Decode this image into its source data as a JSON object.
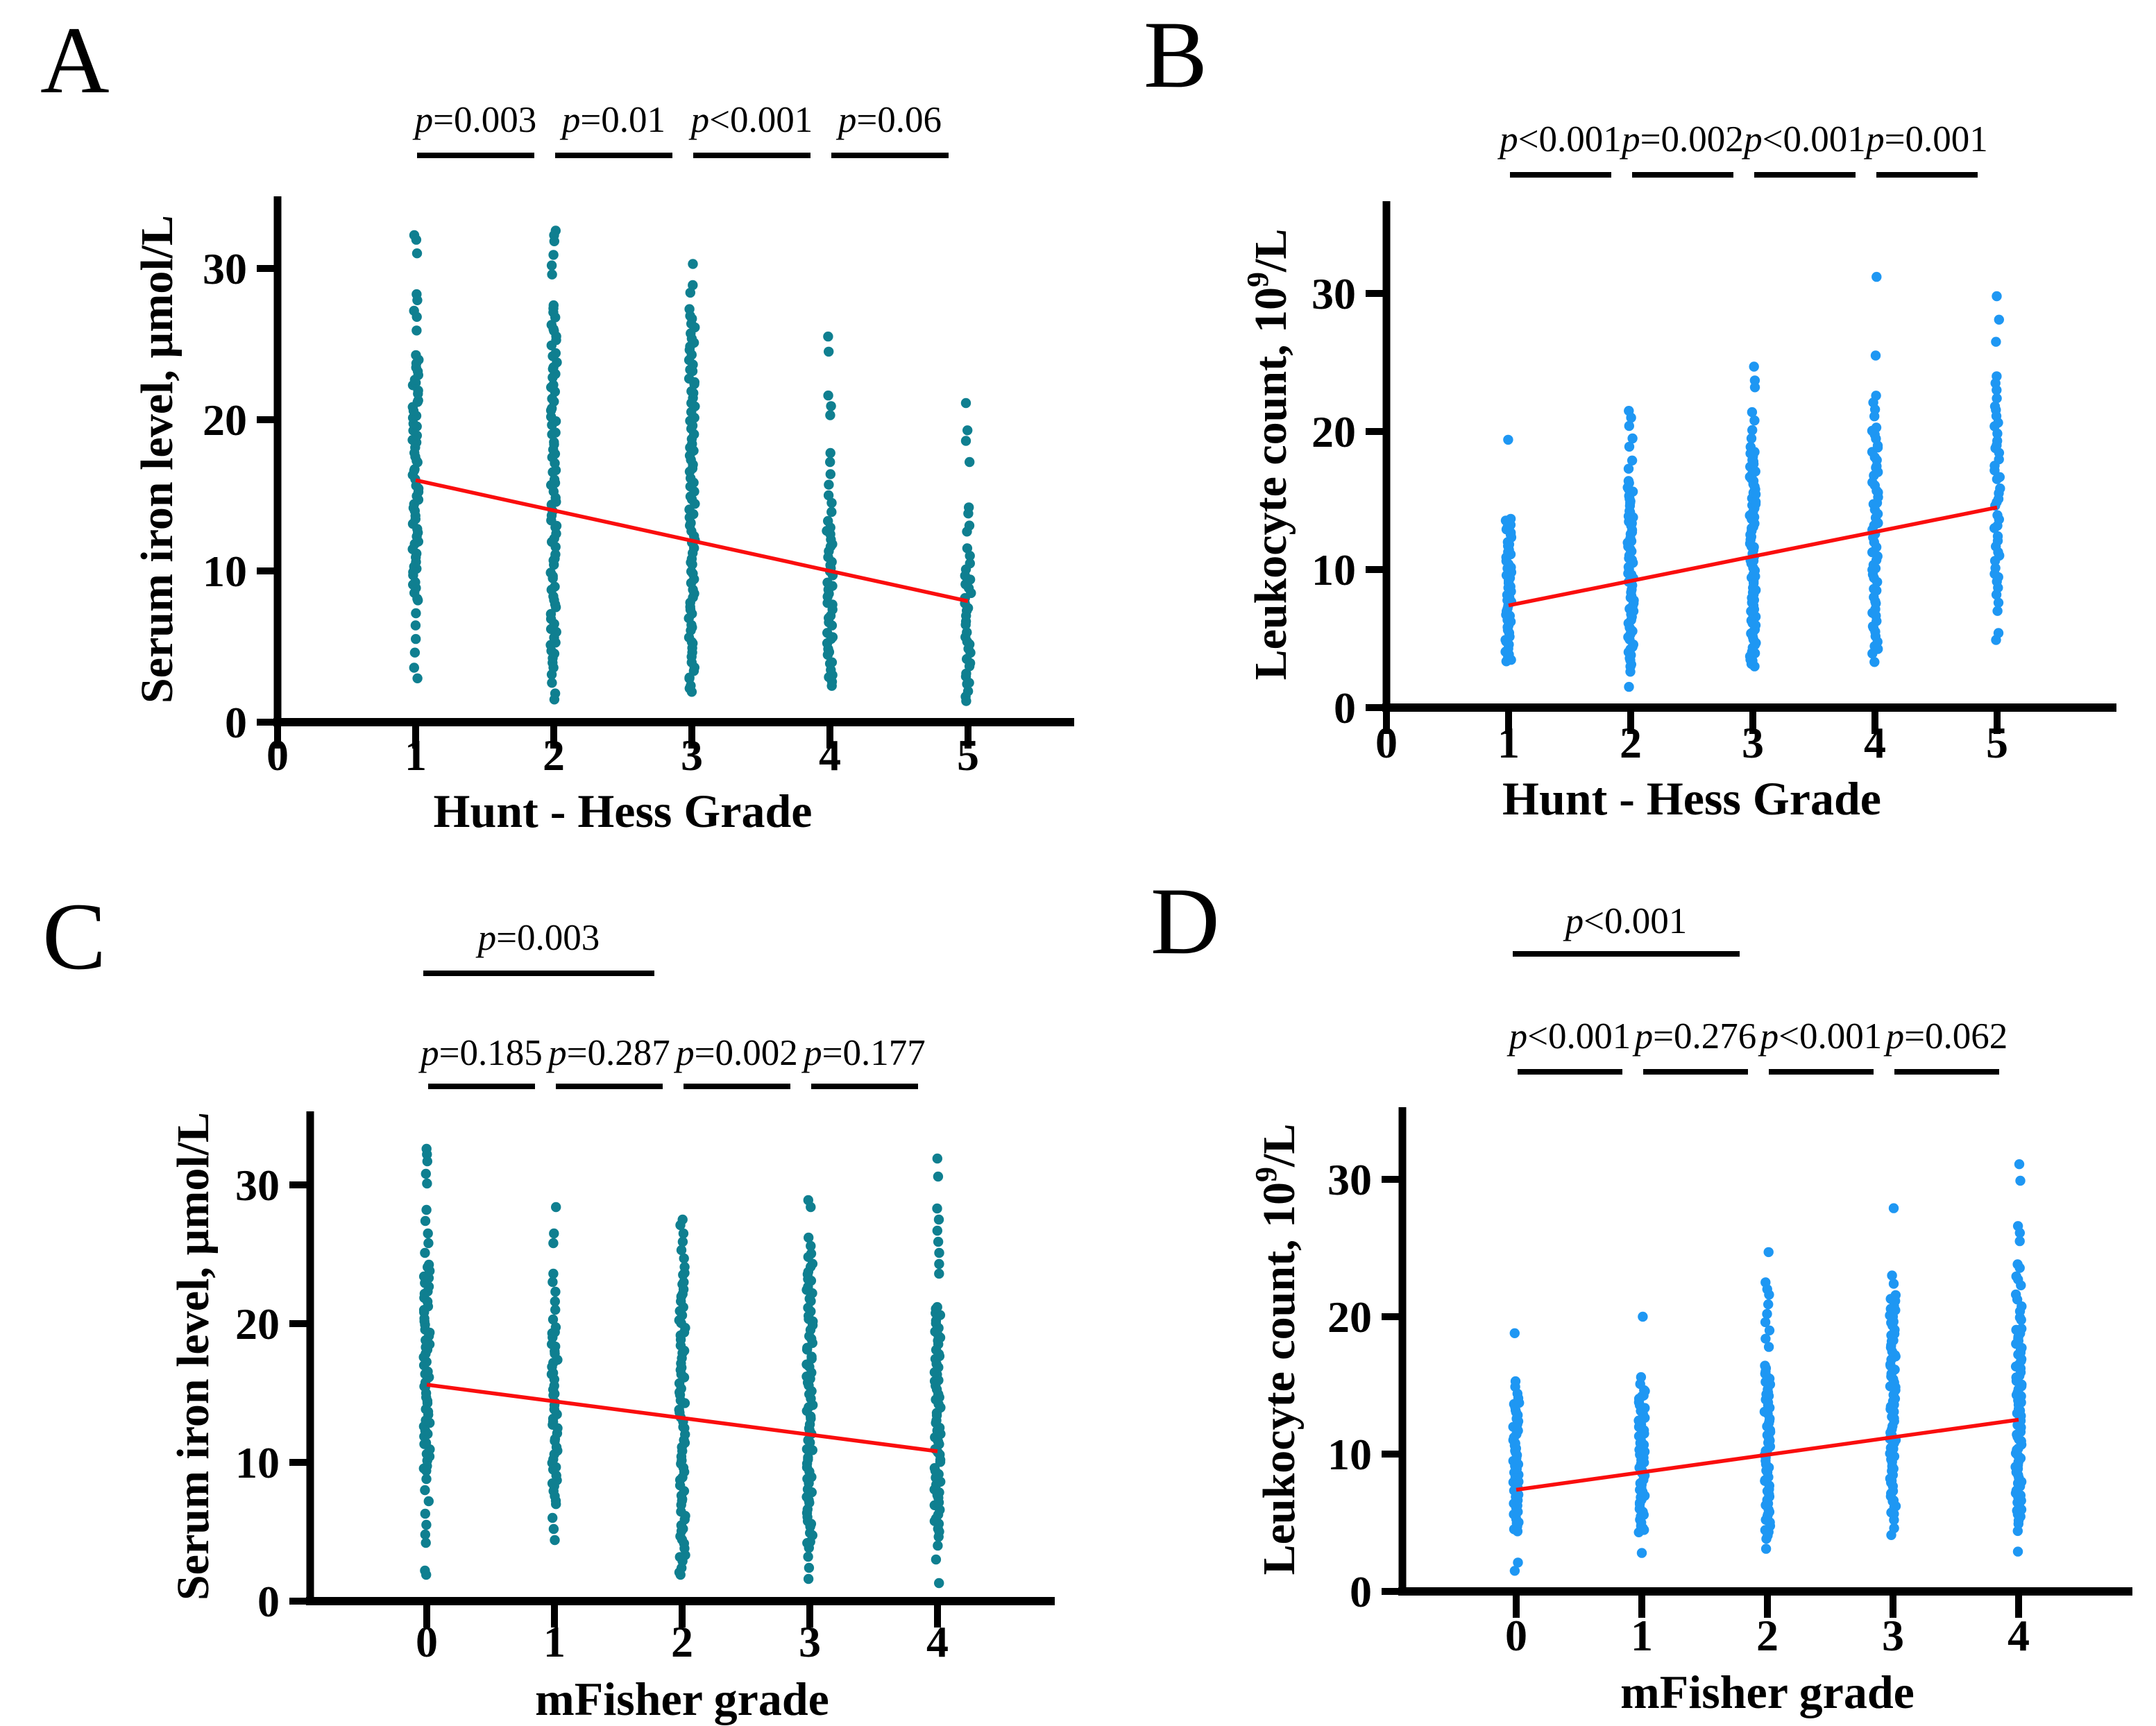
{
  "figure": {
    "background": "#ffffff",
    "panel_order": [
      "A",
      "B",
      "C",
      "D"
    ]
  },
  "colors": {
    "teal_points": "#0f7f90",
    "blue_points": "#1e97f3",
    "trend_red": "#fa0d0d",
    "axis_black": "#000000"
  },
  "chart_data": [
    {
      "id": "A",
      "panel_label": "A",
      "type": "scatter",
      "xlabel": "Hunt - Hess Grade",
      "ylabel": "Serum iron level, µmol/L",
      "ylabel_parts": [
        {
          "text": "Serum iron level, µmol/L"
        }
      ],
      "xticks": [
        "0",
        "1",
        "2",
        "3",
        "4",
        "5"
      ],
      "yticks": [
        "0",
        "10",
        "20",
        "30"
      ],
      "ylim": [
        0,
        35
      ],
      "grid": false,
      "point_color": "#0f7f90",
      "trend": {
        "color": "#fa0d0d",
        "from_x": "1",
        "from_y": 16.0,
        "to_x": "5",
        "to_y": 8.0
      },
      "comparisons": [
        {
          "label": "p=0.003",
          "from": "1",
          "to": "2",
          "row": "adjacent"
        },
        {
          "label": "p=0.01",
          "from": "2",
          "to": "3",
          "row": "adjacent"
        },
        {
          "label": "p<0.001",
          "from": "3",
          "to": "4",
          "row": "adjacent"
        },
        {
          "label": "p=0.06",
          "from": "4",
          "to": "5",
          "row": "adjacent"
        }
      ],
      "groups": [
        {
          "x": "1",
          "singles": [
            32.2,
            31.9,
            31.0,
            28.3,
            27.9,
            27.2,
            26.8,
            25.9,
            7.2,
            6.4,
            5.5,
            4.6,
            3.6,
            2.9
          ],
          "bands": [
            {
              "lo": 8.0,
              "hi": 24.3,
              "n": 62
            }
          ]
        },
        {
          "x": "2",
          "singles": [
            32.5,
            32.2,
            31.8,
            30.9,
            30.2,
            29.6,
            2.6,
            1.9,
            1.5
          ],
          "bands": [
            {
              "lo": 3.2,
              "hi": 27.6,
              "n": 80
            }
          ]
        },
        {
          "x": "3",
          "singles": [
            30.3,
            28.9,
            28.4
          ],
          "bands": [
            {
              "lo": 1.9,
              "hi": 27.2,
              "n": 88
            }
          ]
        },
        {
          "x": "4",
          "singles": [
            25.5,
            24.5,
            21.6,
            20.9,
            20.3,
            17.8,
            17.2,
            16.4,
            15.7,
            15.0,
            14.5,
            13.9
          ],
          "bands": [
            {
              "lo": 2.4,
              "hi": 13.2,
              "n": 40
            }
          ]
        },
        {
          "x": "5",
          "singles": [
            21.1,
            19.3,
            18.6,
            17.2,
            14.2,
            13.8,
            13.0,
            12.6,
            11.5,
            11.0,
            10.5,
            10.1,
            1.4
          ],
          "bands": [
            {
              "lo": 1.8,
              "hi": 9.7,
              "n": 27
            }
          ]
        }
      ]
    },
    {
      "id": "B",
      "panel_label": "B",
      "type": "scatter",
      "xlabel": "Hunt - Hess Grade",
      "ylabel": "Leukocyte count, 10⁹/L",
      "ylabel_parts": [
        {
          "text": "Leukocyte count, 10"
        },
        {
          "text": "9",
          "sup": true
        },
        {
          "text": "/L"
        }
      ],
      "xticks": [
        "0",
        "1",
        "2",
        "3",
        "4",
        "5"
      ],
      "yticks": [
        "0",
        "10",
        "20",
        "30"
      ],
      "ylim": [
        0,
        35
      ],
      "grid": false,
      "point_color": "#1e97f3",
      "trend": {
        "color": "#fa0d0d",
        "from_x": "1",
        "from_y": 7.4,
        "to_x": "5",
        "to_y": 14.5
      },
      "comparisons": [
        {
          "label": "p<0.001",
          "from": "1",
          "to": "2",
          "row": "adjacent"
        },
        {
          "label": "p=0.002",
          "from": "2",
          "to": "3",
          "row": "adjacent"
        },
        {
          "label": "p<0.001",
          "from": "3",
          "to": "4",
          "row": "adjacent"
        },
        {
          "label": "p=0.001",
          "from": "4",
          "to": "5",
          "row": "adjacent"
        }
      ],
      "groups": [
        {
          "x": "1",
          "singles": [
            19.4
          ],
          "bands": [
            {
              "lo": 3.3,
              "hi": 13.7,
              "n": 52
            }
          ]
        },
        {
          "x": "2",
          "singles": [
            21.5,
            21.0,
            20.4,
            19.5,
            18.9,
            17.9,
            17.3,
            2.6,
            1.5
          ],
          "bands": [
            {
              "lo": 3.0,
              "hi": 16.4,
              "n": 66
            }
          ]
        },
        {
          "x": "3",
          "singles": [
            24.7,
            23.7,
            23.2,
            21.4,
            20.8,
            20.1,
            19.5
          ],
          "bands": [
            {
              "lo": 2.9,
              "hi": 18.8,
              "n": 80
            }
          ]
        },
        {
          "x": "4",
          "singles": [
            31.2,
            25.5,
            22.6,
            22.1,
            21.6,
            21.1,
            3.3
          ],
          "bands": [
            {
              "lo": 3.9,
              "hi": 20.3,
              "n": 56
            }
          ]
        },
        {
          "x": "5",
          "singles": [
            29.8,
            28.1,
            26.5,
            24.0,
            23.5,
            23.0,
            22.4,
            7.6,
            7.0,
            5.4,
            4.9
          ],
          "bands": [
            {
              "lo": 8.3,
              "hi": 21.8,
              "n": 36
            }
          ]
        }
      ]
    },
    {
      "id": "C",
      "panel_label": "C",
      "type": "scatter",
      "xlabel": "mFisher grade",
      "ylabel": "Serum iron level, µmol/L",
      "ylabel_parts": [
        {
          "text": "Serum iron level, µmol/L"
        }
      ],
      "xticks": [
        "0",
        "1",
        "2",
        "3",
        "4"
      ],
      "yticks": [
        "0",
        "10",
        "20",
        "30"
      ],
      "ylim": [
        0,
        35
      ],
      "grid": false,
      "point_color": "#0f7f90",
      "trend": {
        "color": "#fa0d0d",
        "from_x": "0",
        "from_y": 15.6,
        "to_x": "4",
        "to_y": 10.8
      },
      "comparisons": [
        {
          "label": "p=0.003",
          "from": "0",
          "to": "2",
          "row": "top"
        },
        {
          "label": "p=0.185",
          "from": "0",
          "to": "1",
          "row": "adjacent"
        },
        {
          "label": "p=0.287",
          "from": "1",
          "to": "2",
          "row": "adjacent"
        },
        {
          "label": "p=0.002",
          "from": "2",
          "to": "3",
          "row": "adjacent"
        },
        {
          "label": "p=0.177",
          "from": "3",
          "to": "4",
          "row": "adjacent"
        }
      ],
      "groups": [
        {
          "x": "0",
          "singles": [
            32.6,
            32.2,
            31.7,
            30.8,
            30.1,
            28.2,
            27.4,
            26.5,
            25.8,
            25.1,
            8.8,
            8.0,
            7.2,
            6.3,
            5.5,
            4.8,
            4.2,
            2.2,
            1.9
          ],
          "bands": [
            {
              "lo": 9.3,
              "hi": 24.3,
              "n": 56
            }
          ]
        },
        {
          "x": "1",
          "singles": [
            28.4,
            26.5,
            25.8,
            23.6,
            23.0,
            22.3,
            21.6,
            21.0,
            20.3,
            6.0,
            5.2,
            4.4
          ],
          "bands": [
            {
              "lo": 7.0,
              "hi": 19.8,
              "n": 44
            }
          ]
        },
        {
          "x": "2",
          "singles": [
            27.5,
            27.1,
            26.5,
            25.9,
            25.3,
            24.7,
            1.9
          ],
          "bands": [
            {
              "lo": 2.2,
              "hi": 24.0,
              "n": 72
            }
          ]
        },
        {
          "x": "3",
          "singles": [
            28.9,
            28.4,
            26.2,
            25.6,
            3.2,
            2.4,
            1.6
          ],
          "bands": [
            {
              "lo": 3.8,
              "hi": 25.0,
              "n": 74
            }
          ]
        },
        {
          "x": "4",
          "singles": [
            31.9,
            30.6,
            28.3,
            27.5,
            26.7,
            25.9,
            25.1,
            24.3,
            23.6,
            4.0,
            3.0,
            1.3
          ],
          "bands": [
            {
              "lo": 4.7,
              "hi": 21.3,
              "n": 64
            }
          ]
        }
      ]
    },
    {
      "id": "D",
      "panel_label": "D",
      "type": "scatter",
      "xlabel": "mFisher grade",
      "ylabel": "Leukocyte count, 10⁹/L",
      "ylabel_parts": [
        {
          "text": "Leukocyte count, 10"
        },
        {
          "text": "9",
          "sup": true
        },
        {
          "text": "/L"
        }
      ],
      "xticks": [
        "0",
        "1",
        "2",
        "3",
        "4"
      ],
      "yticks": [
        "0",
        "10",
        "20",
        "30"
      ],
      "ylim": [
        0,
        35
      ],
      "grid": false,
      "point_color": "#1e97f3",
      "trend": {
        "color": "#fa0d0d",
        "from_x": "0",
        "from_y": 7.4,
        "to_x": "4",
        "to_y": 12.5
      },
      "comparisons": [
        {
          "label": "p<0.001",
          "from": "0",
          "to": "2",
          "row": "top"
        },
        {
          "label": "p<0.001",
          "from": "0",
          "to": "1",
          "row": "adjacent"
        },
        {
          "label": "p=0.276",
          "from": "1",
          "to": "2",
          "row": "adjacent"
        },
        {
          "label": "p<0.001",
          "from": "2",
          "to": "3",
          "row": "adjacent"
        },
        {
          "label": "p=0.062",
          "from": "3",
          "to": "4",
          "row": "adjacent"
        }
      ],
      "groups": [
        {
          "x": "0",
          "singles": [
            18.8,
            15.3,
            14.9,
            14.4,
            2.1,
            1.5
          ],
          "bands": [
            {
              "lo": 4.3,
              "hi": 14.0,
              "n": 50
            }
          ]
        },
        {
          "x": "1",
          "singles": [
            20.0,
            15.6,
            15.1,
            2.8
          ],
          "bands": [
            {
              "lo": 4.3,
              "hi": 14.7,
              "n": 58
            }
          ]
        },
        {
          "x": "2",
          "singles": [
            24.7,
            22.5,
            22.0,
            21.6,
            20.9,
            20.2,
            19.6,
            19.0,
            18.4,
            17.8,
            3.1
          ],
          "bands": [
            {
              "lo": 3.9,
              "hi": 16.5,
              "n": 60
            }
          ]
        },
        {
          "x": "3",
          "singles": [
            27.9,
            23.0,
            22.4,
            5.2,
            4.6,
            4.1
          ],
          "bands": [
            {
              "lo": 5.6,
              "hi": 21.5,
              "n": 72
            }
          ]
        },
        {
          "x": "4",
          "singles": [
            31.1,
            29.9,
            26.6,
            26.1,
            25.5,
            4.4,
            2.9
          ],
          "bands": [
            {
              "lo": 19.2,
              "hi": 23.9,
              "n": 12
            },
            {
              "lo": 5.0,
              "hi": 19.0,
              "n": 70
            }
          ]
        }
      ]
    }
  ]
}
